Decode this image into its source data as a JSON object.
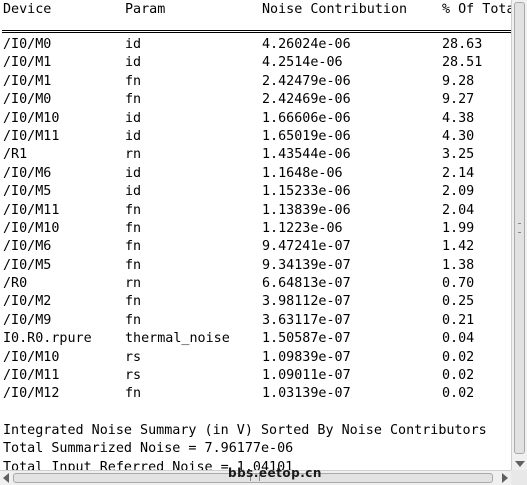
{
  "header": {
    "device": "Device",
    "param": "Param",
    "noise": "Noise Contribution",
    "pct": "% Of Tota"
  },
  "rows": [
    {
      "device": "/I0/M0",
      "param": "id",
      "noise": "4.26024e-06",
      "pct": "28.63"
    },
    {
      "device": "/I0/M1",
      "param": "id",
      "noise": "4.2514e-06",
      "pct": "28.51"
    },
    {
      "device": "/I0/M1",
      "param": "fn",
      "noise": "2.42479e-06",
      "pct": "9.28"
    },
    {
      "device": "/I0/M0",
      "param": "fn",
      "noise": "2.42469e-06",
      "pct": "9.27"
    },
    {
      "device": "/I0/M10",
      "param": "id",
      "noise": "1.66606e-06",
      "pct": "4.38"
    },
    {
      "device": "/I0/M11",
      "param": "id",
      "noise": "1.65019e-06",
      "pct": "4.30"
    },
    {
      "device": "/R1",
      "param": "rn",
      "noise": "1.43544e-06",
      "pct": "3.25"
    },
    {
      "device": "/I0/M6",
      "param": "id",
      "noise": "1.1648e-06",
      "pct": "2.14"
    },
    {
      "device": "/I0/M5",
      "param": "id",
      "noise": "1.15233e-06",
      "pct": "2.09"
    },
    {
      "device": "/I0/M11",
      "param": "fn",
      "noise": "1.13839e-06",
      "pct": "2.04"
    },
    {
      "device": "/I0/M10",
      "param": "fn",
      "noise": "1.1223e-06",
      "pct": "1.99"
    },
    {
      "device": "/I0/M6",
      "param": "fn",
      "noise": "9.47241e-07",
      "pct": "1.42"
    },
    {
      "device": "/I0/M5",
      "param": "fn",
      "noise": "9.34139e-07",
      "pct": "1.38"
    },
    {
      "device": "/R0",
      "param": "rn",
      "noise": "6.64813e-07",
      "pct": "0.70"
    },
    {
      "device": "/I0/M2",
      "param": "fn",
      "noise": "3.98112e-07",
      "pct": "0.25"
    },
    {
      "device": "/I0/M9",
      "param": "fn",
      "noise": "3.63117e-07",
      "pct": "0.21"
    },
    {
      "device": "I0.R0.rpure",
      "param": "thermal_noise",
      "noise": "1.50587e-07",
      "pct": "0.04"
    },
    {
      "device": "/I0/M10",
      "param": "rs",
      "noise": "1.09839e-07",
      "pct": "0.02"
    },
    {
      "device": "/I0/M11",
      "param": "rs",
      "noise": "1.09011e-07",
      "pct": "0.02"
    },
    {
      "device": "/I0/M12",
      "param": "fn",
      "noise": "1.03139e-07",
      "pct": "0.02"
    }
  ],
  "summary": {
    "title": "Integrated Noise Summary (in V) Sorted By Noise Contributors",
    "total": "Total Summarized Noise = 7.96177e-06",
    "input_referred": "Total Input Referred Noise = 1.04101"
  },
  "watermark": "bbs.eetop.cn",
  "icons": {
    "scroll_down": "arrow-down-icon",
    "scroll_left": "arrow-left-icon",
    "scroll_right": "arrow-right-icon"
  }
}
